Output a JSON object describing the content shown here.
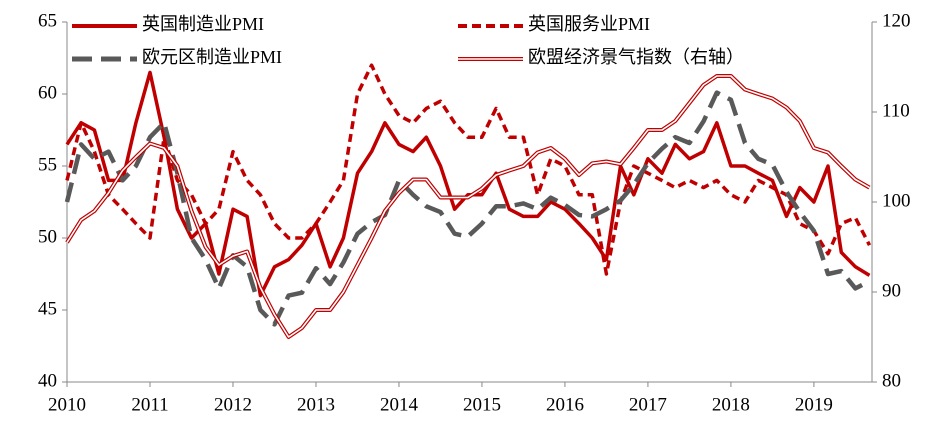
{
  "chart_data": {
    "type": "line",
    "x": [
      2010.0,
      2010.17,
      2010.33,
      2010.5,
      2010.67,
      2010.83,
      2011.0,
      2011.17,
      2011.33,
      2011.5,
      2011.67,
      2011.83,
      2012.0,
      2012.17,
      2012.33,
      2012.5,
      2012.67,
      2012.83,
      2013.0,
      2013.17,
      2013.33,
      2013.5,
      2013.67,
      2013.83,
      2014.0,
      2014.17,
      2014.33,
      2014.5,
      2014.67,
      2014.83,
      2015.0,
      2015.17,
      2015.33,
      2015.5,
      2015.67,
      2015.83,
      2016.0,
      2016.17,
      2016.33,
      2016.5,
      2016.67,
      2016.83,
      2017.0,
      2017.17,
      2017.33,
      2017.5,
      2017.67,
      2017.83,
      2018.0,
      2018.17,
      2018.33,
      2018.5,
      2018.67,
      2018.83,
      2019.0,
      2019.17,
      2019.33,
      2019.5,
      2019.67
    ],
    "series": [
      {
        "name": "英国制造业PMI",
        "color": "#c00000",
        "style": "solid",
        "axis": "y",
        "values": [
          56.5,
          58,
          57.5,
          54,
          54,
          58,
          61.5,
          57,
          52,
          50,
          51,
          47.5,
          52,
          51.5,
          46,
          48,
          48.5,
          49.5,
          51,
          48,
          50,
          54.5,
          56,
          58,
          56.5,
          56,
          57,
          55,
          52,
          53,
          53,
          54.5,
          52,
          51.5,
          51.5,
          52.5,
          52,
          51,
          50,
          48.5,
          55,
          53,
          55.5,
          54.5,
          56.5,
          55.5,
          56,
          58,
          55,
          55,
          54.5,
          54,
          51.5,
          53.5,
          52.5,
          55,
          49,
          48,
          47.4
        ]
      },
      {
        "name": "英国服务业PMI",
        "color": "#c00000",
        "style": "dashed",
        "axis": "y",
        "values": [
          54,
          58,
          56,
          53,
          52,
          51,
          50,
          57,
          54,
          53,
          51,
          52,
          56,
          54,
          53,
          51,
          50,
          50,
          51,
          52.5,
          54,
          60,
          62,
          60,
          58.5,
          58,
          59,
          59.5,
          58,
          57,
          57,
          59,
          57,
          57,
          53,
          55.5,
          55,
          53,
          53,
          47.5,
          52.5,
          55,
          54.5,
          54,
          53.5,
          54,
          53.5,
          54,
          53,
          52.5,
          54,
          53.5,
          53,
          51,
          50.5,
          48.9,
          51,
          51.4,
          49.5
        ]
      },
      {
        "name": "欧元区制造业PMI",
        "color": "#595959",
        "style": "longdash",
        "axis": "y",
        "values": [
          52.5,
          56.5,
          55.5,
          56,
          54,
          55,
          57,
          58,
          54.5,
          50,
          48.5,
          46.5,
          48.8,
          48,
          45,
          44,
          46,
          46.2,
          47.9,
          46.8,
          48.3,
          50.3,
          51.1,
          51.6,
          54,
          53,
          52.2,
          51.8,
          50.3,
          50.1,
          51,
          52.2,
          52.2,
          52.4,
          52,
          52.8,
          52.3,
          51.6,
          51.5,
          52,
          52.6,
          53.7,
          55.2,
          56.2,
          57,
          56.6,
          58.1,
          60.1,
          59.6,
          56.6,
          55.5,
          55.1,
          53.2,
          51.8,
          50.5,
          47.5,
          47.7,
          46.5,
          47
        ]
      },
      {
        "name": "欧盟经济景气指数（右轴）",
        "color": "#c00000",
        "style": "double",
        "axis": "y2",
        "values": [
          95.5,
          98,
          99,
          101,
          103.5,
          105,
          106.5,
          106,
          104,
          99,
          95,
          93,
          94,
          94.5,
          90.5,
          87.5,
          85,
          86,
          88,
          88,
          90,
          93,
          96,
          99,
          101,
          102.5,
          102.5,
          100.5,
          100.5,
          100.5,
          101.5,
          103,
          103.5,
          104,
          105.5,
          106,
          104.8,
          103,
          104.3,
          104.5,
          104.2,
          106,
          108,
          108,
          109,
          111,
          113,
          114,
          114,
          112.5,
          112,
          111.5,
          110.5,
          109,
          106,
          105.5,
          104,
          102.5,
          101.6
        ]
      }
    ],
    "xlim": [
      2010,
      2019.7
    ],
    "xticks": [
      2010,
      2011,
      2012,
      2013,
      2014,
      2015,
      2016,
      2017,
      2018,
      2019
    ],
    "ylim": [
      40,
      65
    ],
    "yticks": [
      40,
      45,
      50,
      55,
      60,
      65
    ],
    "y2lim": [
      80,
      120
    ],
    "y2ticks": [
      80,
      90,
      100,
      110,
      120
    ]
  }
}
